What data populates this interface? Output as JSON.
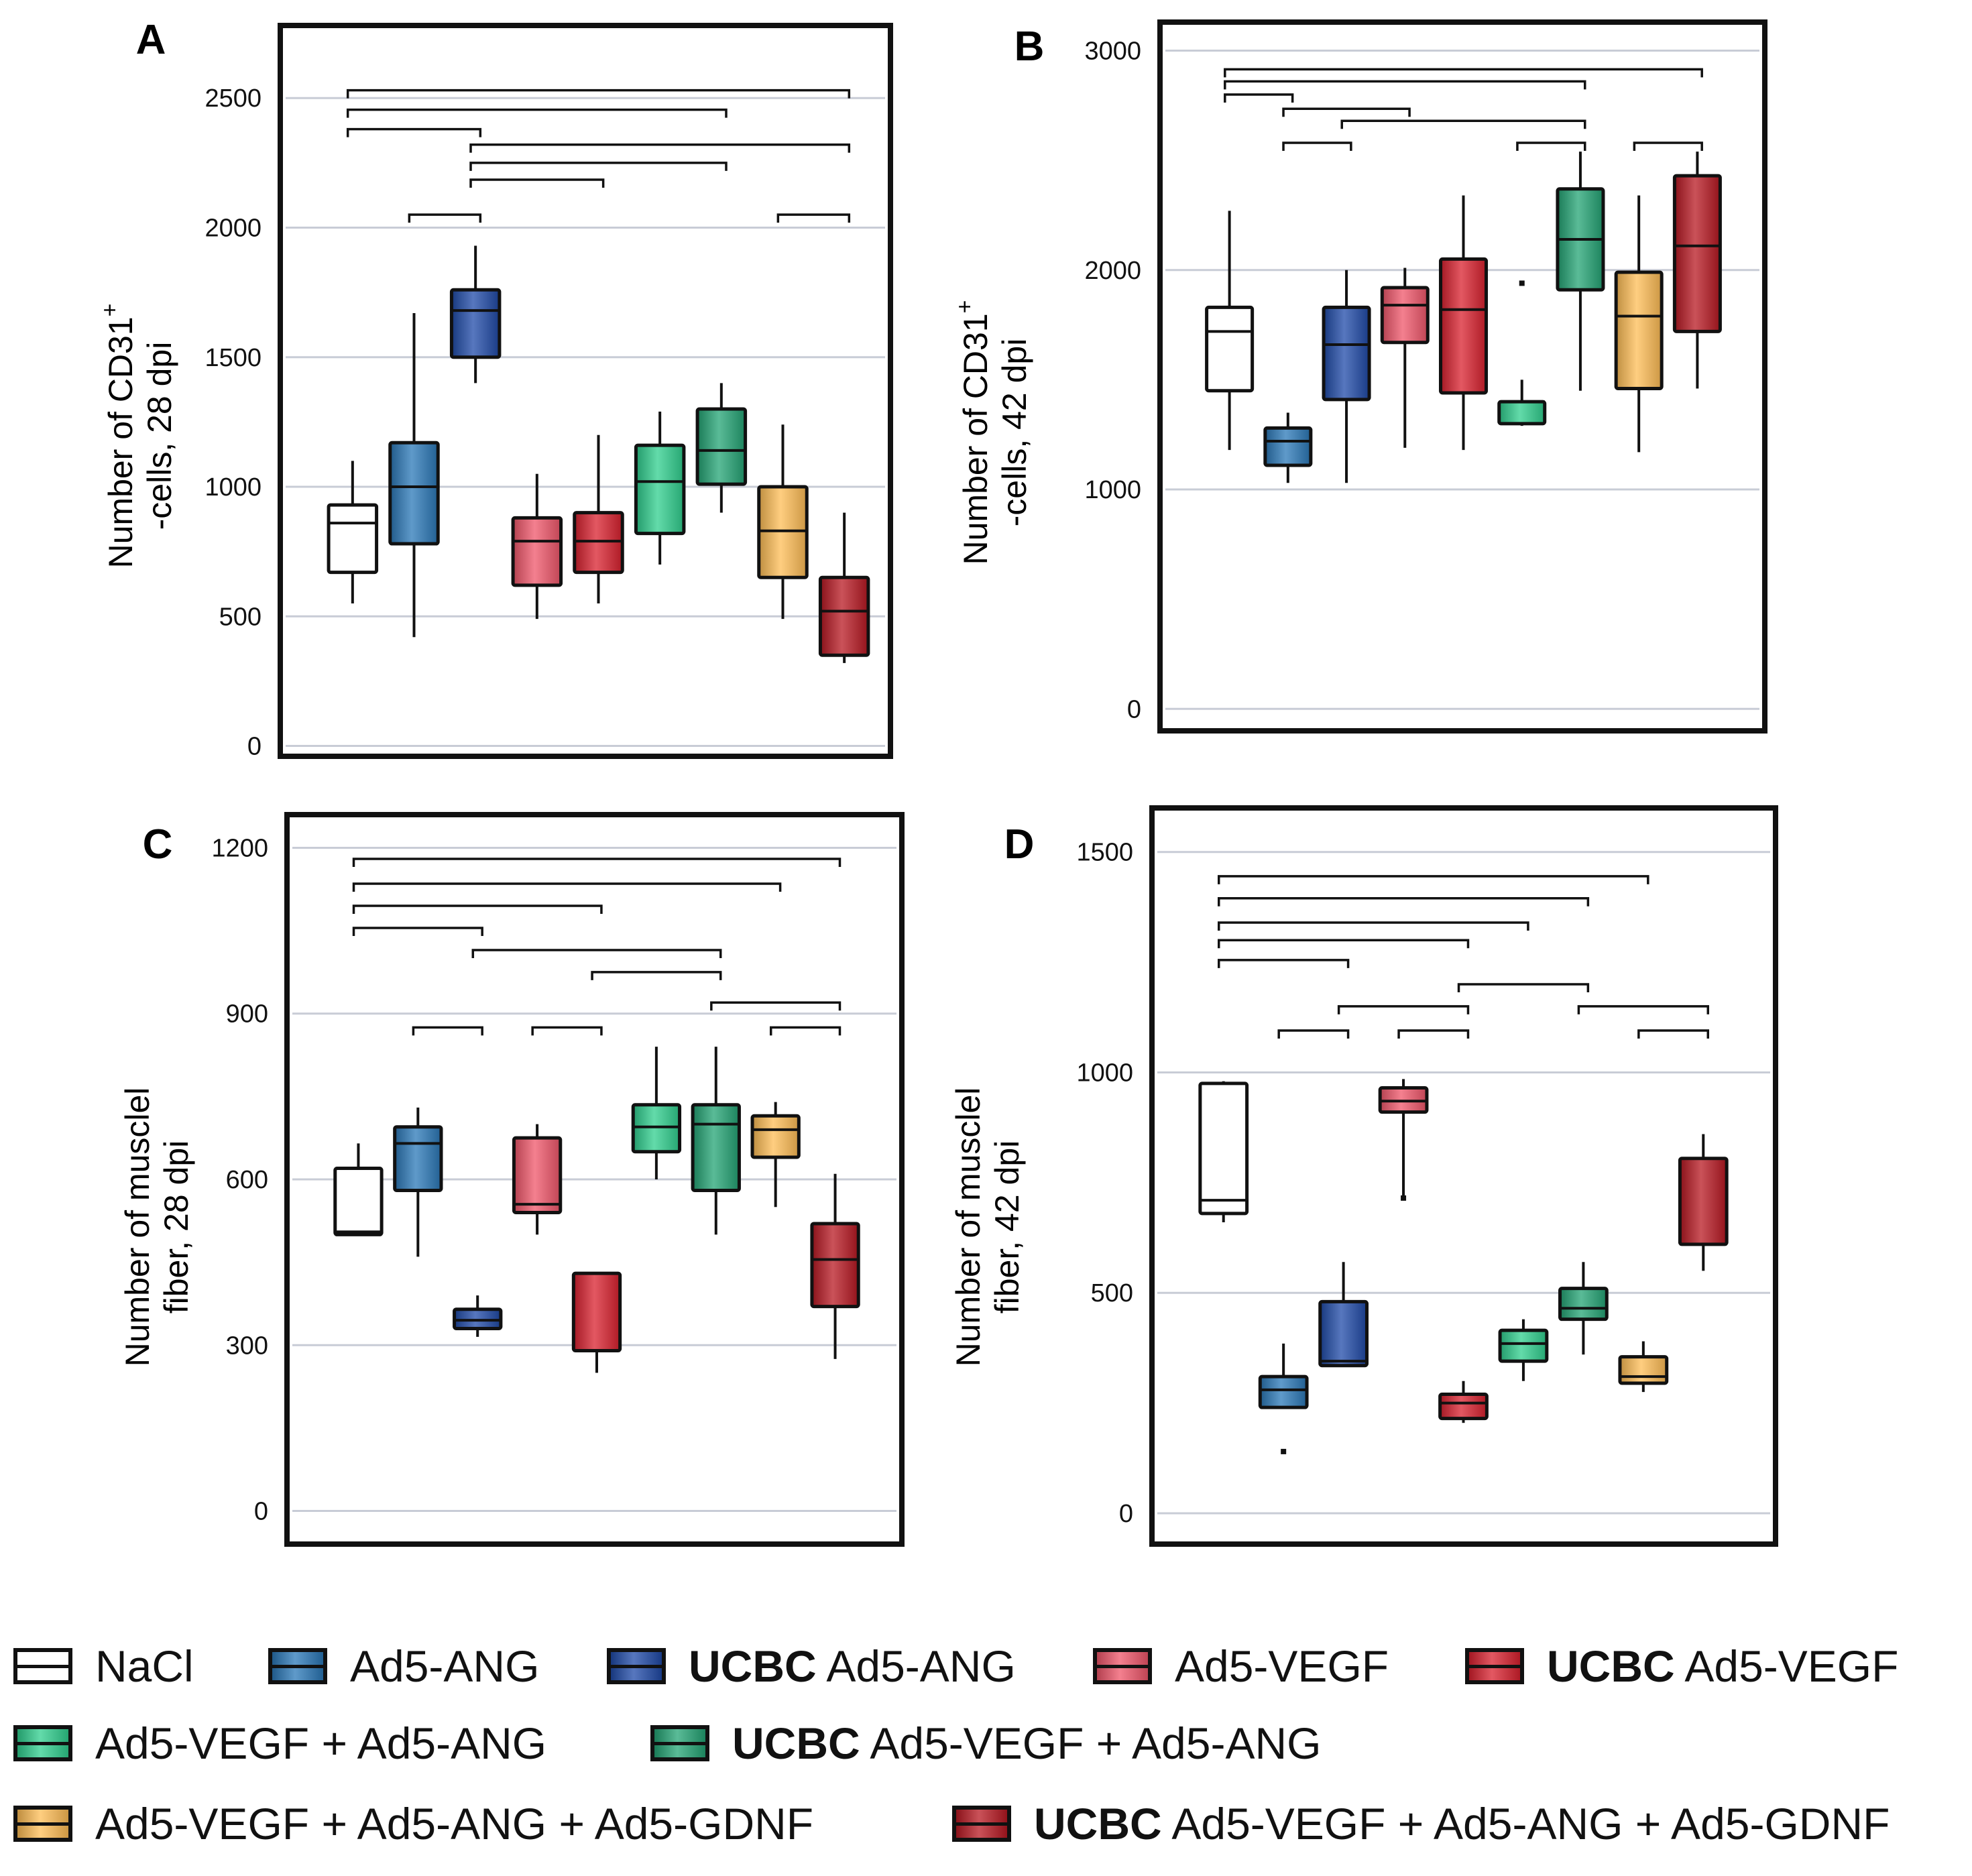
{
  "colors": {
    "NaCl": "#ffffff",
    "Ad5-ANG": "#2a78b8",
    "UCBC Ad5-ANG": "#1f4aa8",
    "Ad5-VEGF": "#f0566a",
    "UCBC Ad5-VEGF": "#d9202e",
    "Ad5-VEGF + Ad5-ANG": "#2fcf8e",
    "UCBC Ad5-VEGF + Ad5-ANG": "#23a474",
    "Ad5-VEGF + Ad5-ANG + Ad5-GDNF": "#ffbd55",
    "UCBC Ad5-VEGF + Ad5-ANG + Ad5-GDNF": "#b81822"
  },
  "legend": [
    {
      "prefix": "",
      "label": "NaCl",
      "group": "NaCl"
    },
    {
      "prefix": "",
      "label": "Ad5-ANG",
      "group": "Ad5-ANG"
    },
    {
      "prefix": "UCBC",
      "label": " Ad5-ANG",
      "group": "UCBC Ad5-ANG"
    },
    {
      "prefix": "",
      "label": "Ad5-VEGF",
      "group": "Ad5-VEGF"
    },
    {
      "prefix": "UCBC",
      "label": " Ad5-VEGF",
      "group": "UCBC Ad5-VEGF"
    },
    {
      "prefix": "",
      "label": "Ad5-VEGF + Ad5-ANG",
      "group": "Ad5-VEGF + Ad5-ANG"
    },
    {
      "prefix": "UCBC",
      "label": " Ad5-VEGF + Ad5-ANG",
      "group": "UCBC Ad5-VEGF + Ad5-ANG"
    },
    {
      "prefix": "",
      "label": "Ad5-VEGF + Ad5-ANG + Ad5-GDNF",
      "group": "Ad5-VEGF + Ad5-ANG + Ad5-GDNF"
    },
    {
      "prefix": "UCBC",
      "label": " Ad5-VEGF + Ad5-ANG + Ad5-GDNF",
      "group": "UCBC Ad5-VEGF + Ad5-ANG + Ad5-GDNF"
    }
  ],
  "chart_data": [
    {
      "panel": "A",
      "type": "box",
      "ylabel_line1": "Number of CD31",
      "ylabel_sup": "+",
      "ylabel_line2": "-cells, 28 dpi",
      "yticks": [
        0,
        500,
        1000,
        1500,
        2000,
        2500
      ],
      "ylim": [
        -40,
        2780
      ],
      "groups": [
        {
          "group": "NaCl",
          "whisker_low": 550,
          "q1": 670,
          "median": 860,
          "q3": 930,
          "whisker_high": 1100
        },
        {
          "group": "Ad5-ANG",
          "whisker_low": 420,
          "q1": 780,
          "median": 1000,
          "q3": 1170,
          "whisker_high": 1670
        },
        {
          "group": "UCBC Ad5-ANG",
          "whisker_low": 1400,
          "q1": 1500,
          "median": 1680,
          "q3": 1760,
          "whisker_high": 1930
        },
        {
          "group": "Ad5-VEGF",
          "whisker_low": 490,
          "q1": 620,
          "median": 790,
          "q3": 880,
          "whisker_high": 1050
        },
        {
          "group": "UCBC Ad5-VEGF",
          "whisker_low": 550,
          "q1": 670,
          "median": 790,
          "q3": 900,
          "whisker_high": 1200
        },
        {
          "group": "Ad5-VEGF + Ad5-ANG",
          "whisker_low": 700,
          "q1": 820,
          "median": 1020,
          "q3": 1160,
          "whisker_high": 1290
        },
        {
          "group": "UCBC Ad5-VEGF + Ad5-ANG",
          "whisker_low": 900,
          "q1": 1010,
          "median": 1140,
          "q3": 1300,
          "whisker_high": 1400
        },
        {
          "group": "Ad5-VEGF + Ad5-ANG + Ad5-GDNF",
          "whisker_low": 490,
          "q1": 650,
          "median": 830,
          "q3": 1000,
          "whisker_high": 1240
        },
        {
          "group": "UCBC Ad5-VEGF + Ad5-ANG + Ad5-GDNF",
          "whisker_low": 320,
          "q1": 350,
          "median": 520,
          "q3": 650,
          "whisker_high": 900
        }
      ],
      "brackets": [
        [
          0,
          8,
          2530
        ],
        [
          0,
          6,
          2455
        ],
        [
          0,
          2,
          2380
        ],
        [
          2,
          8,
          2320
        ],
        [
          2,
          6,
          2250
        ],
        [
          2,
          4,
          2185
        ],
        [
          1,
          2,
          2050
        ],
        [
          7,
          8,
          2050
        ]
      ]
    },
    {
      "panel": "B",
      "type": "box",
      "ylabel_line1": "Number of CD31",
      "ylabel_sup": "+",
      "ylabel_line2": "-cells, 42 dpi",
      "yticks": [
        0,
        1000,
        2000,
        3000
      ],
      "ylim": [
        -100,
        3130
      ],
      "groups": [
        {
          "group": "NaCl",
          "whisker_low": 1180,
          "q1": 1450,
          "median": 1720,
          "q3": 1830,
          "whisker_high": 2270
        },
        {
          "group": "Ad5-ANG",
          "whisker_low": 1030,
          "q1": 1110,
          "median": 1220,
          "q3": 1280,
          "whisker_high": 1350
        },
        {
          "group": "UCBC Ad5-ANG",
          "whisker_low": 1030,
          "q1": 1410,
          "median": 1660,
          "q3": 1830,
          "whisker_high": 2000
        },
        {
          "group": "Ad5-VEGF",
          "whisker_low": 1190,
          "q1": 1670,
          "median": 1840,
          "q3": 1920,
          "whisker_high": 2010
        },
        {
          "group": "UCBC Ad5-VEGF",
          "whisker_low": 1180,
          "q1": 1440,
          "median": 1820,
          "q3": 2050,
          "whisker_high": 2340
        },
        {
          "group": "Ad5-VEGF + Ad5-ANG",
          "whisker_low": 1290,
          "q1": 1300,
          "median": 1400,
          "q3": 1400,
          "whisker_high": 1500,
          "outliers": [
            1940
          ]
        },
        {
          "group": "UCBC Ad5-VEGF + Ad5-ANG",
          "whisker_low": 1450,
          "q1": 1910,
          "median": 2140,
          "q3": 2370,
          "whisker_high": 2540
        },
        {
          "group": "Ad5-VEGF + Ad5-ANG + Ad5-GDNF",
          "whisker_low": 1170,
          "q1": 1460,
          "median": 1790,
          "q3": 1990,
          "whisker_high": 2340
        },
        {
          "group": "UCBC Ad5-VEGF + Ad5-ANG + Ad5-GDNF",
          "whisker_low": 1460,
          "q1": 1720,
          "median": 2110,
          "q3": 2430,
          "whisker_high": 2540
        }
      ],
      "brackets": [
        [
          0,
          8,
          2915
        ],
        [
          0,
          6,
          2860
        ],
        [
          0,
          1,
          2800
        ],
        [
          1,
          3,
          2735
        ],
        [
          2,
          6,
          2680
        ],
        [
          1,
          2,
          2580
        ],
        [
          5,
          6,
          2580
        ],
        [
          7,
          8,
          2580
        ]
      ]
    },
    {
      "panel": "C",
      "type": "box",
      "ylabel_line1": "Number of musclel",
      "ylabel_line2": "fiber, 28 dpi",
      "yticks": [
        0,
        300,
        600,
        900,
        1200
      ],
      "ylim": [
        -60,
        1260
      ],
      "groups": [
        {
          "group": "NaCl",
          "whisker_low": 500,
          "q1": 500,
          "median": 505,
          "q3": 620,
          "whisker_high": 665
        },
        {
          "group": "Ad5-ANG",
          "whisker_low": 460,
          "q1": 580,
          "median": 665,
          "q3": 695,
          "whisker_high": 730
        },
        {
          "group": "UCBC Ad5-ANG",
          "whisker_low": 315,
          "q1": 330,
          "median": 345,
          "q3": 365,
          "whisker_high": 390
        },
        {
          "group": "Ad5-VEGF",
          "whisker_low": 500,
          "q1": 540,
          "median": 555,
          "q3": 675,
          "whisker_high": 700
        },
        {
          "group": "UCBC Ad5-VEGF",
          "whisker_low": 250,
          "q1": 290,
          "median": 290,
          "q3": 430,
          "whisker_high": 430
        },
        {
          "group": "Ad5-VEGF + Ad5-ANG",
          "whisker_low": 600,
          "q1": 650,
          "median": 695,
          "q3": 735,
          "whisker_high": 840
        },
        {
          "group": "UCBC Ad5-VEGF + Ad5-ANG",
          "whisker_low": 500,
          "q1": 580,
          "median": 700,
          "q3": 735,
          "whisker_high": 840
        },
        {
          "group": "Ad5-VEGF + Ad5-ANG + Ad5-GDNF",
          "whisker_low": 550,
          "q1": 640,
          "median": 690,
          "q3": 715,
          "whisker_high": 740
        },
        {
          "group": "UCBC Ad5-VEGF + Ad5-ANG + Ad5-GDNF",
          "whisker_low": 275,
          "q1": 370,
          "median": 455,
          "q3": 520,
          "whisker_high": 610
        }
      ],
      "brackets": [
        [
          0,
          8,
          1180
        ],
        [
          0,
          7,
          1135
        ],
        [
          0,
          4,
          1095
        ],
        [
          0,
          2,
          1055
        ],
        [
          2,
          6,
          1015
        ],
        [
          4,
          6,
          975
        ],
        [
          6,
          8,
          920
        ],
        [
          1,
          2,
          875
        ],
        [
          3,
          4,
          875
        ],
        [
          7,
          8,
          875
        ]
      ]
    },
    {
      "panel": "D",
      "type": "box",
      "ylabel_line1": "Number of musclel",
      "ylabel_line2": "fiber, 42 dpi",
      "yticks": [
        0,
        500,
        1000,
        1500
      ],
      "ylim": [
        -70,
        1600
      ],
      "groups": [
        {
          "group": "NaCl",
          "whisker_low": 660,
          "q1": 680,
          "median": 710,
          "q3": 975,
          "whisker_high": 980
        },
        {
          "group": "Ad5-ANG",
          "whisker_low": 240,
          "q1": 240,
          "median": 280,
          "q3": 310,
          "whisker_high": 385,
          "outliers": [
            140
          ]
        },
        {
          "group": "UCBC Ad5-ANG",
          "whisker_low": 335,
          "q1": 335,
          "median": 345,
          "q3": 480,
          "whisker_high": 570
        },
        {
          "group": "Ad5-VEGF",
          "whisker_low": 720,
          "q1": 910,
          "median": 935,
          "q3": 965,
          "whisker_high": 985,
          "outliers": [
            715
          ]
        },
        {
          "group": "UCBC Ad5-VEGF",
          "whisker_low": 205,
          "q1": 215,
          "median": 250,
          "q3": 270,
          "whisker_high": 300
        },
        {
          "group": "Ad5-VEGF + Ad5-ANG",
          "whisker_low": 300,
          "q1": 345,
          "median": 385,
          "q3": 415,
          "whisker_high": 440
        },
        {
          "group": "UCBC Ad5-VEGF + Ad5-ANG",
          "whisker_low": 360,
          "q1": 440,
          "median": 465,
          "q3": 510,
          "whisker_high": 570
        },
        {
          "group": "Ad5-VEGF + Ad5-ANG + Ad5-GDNF",
          "whisker_low": 275,
          "q1": 295,
          "median": 310,
          "q3": 355,
          "whisker_high": 390
        },
        {
          "group": "UCBC Ad5-VEGF + Ad5-ANG + Ad5-GDNF",
          "whisker_low": 550,
          "q1": 610,
          "median": 610,
          "q3": 805,
          "whisker_high": 860
        }
      ],
      "brackets": [
        [
          0,
          7,
          1445
        ],
        [
          0,
          6,
          1395
        ],
        [
          0,
          5,
          1340
        ],
        [
          0,
          4,
          1300
        ],
        [
          0,
          2,
          1255
        ],
        [
          4,
          6,
          1200
        ],
        [
          2,
          4,
          1150
        ],
        [
          6,
          8,
          1150
        ],
        [
          1,
          2,
          1095
        ],
        [
          3,
          4,
          1095
        ],
        [
          7,
          8,
          1095
        ]
      ]
    }
  ]
}
